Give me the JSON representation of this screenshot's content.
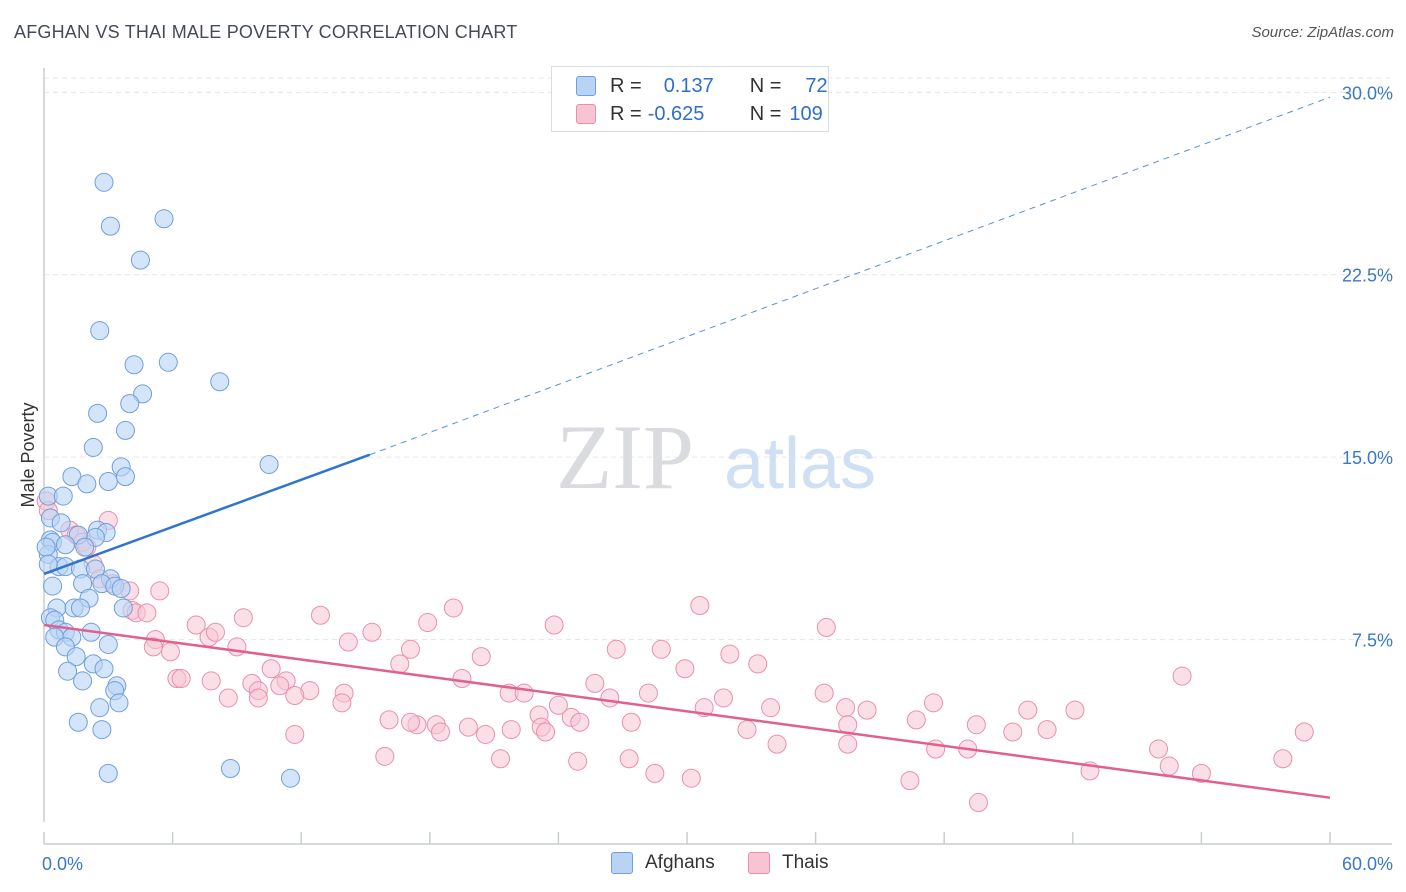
{
  "title": "AFGHAN VS THAI MALE POVERTY CORRELATION CHART",
  "source": "Source: ZipAtlas.com",
  "watermark": {
    "zip": "ZIP",
    "atlas": "atlas"
  },
  "legend": {
    "afghans": {
      "r_label": "R =",
      "r_value": "0.137",
      "n_label": "N =",
      "n_value": "72"
    },
    "thais": {
      "r_label": "R =",
      "r_value": "-0.625",
      "n_label": "N =",
      "n_value": "109"
    }
  },
  "bottom_legend": {
    "afghans": "Afghans",
    "thais": "Thais"
  },
  "colors": {
    "afghans_fill": "#b9d3f5",
    "afghans_stroke": "#6f9fdc",
    "afghans_line": "#2f74d0",
    "thais_fill": "#f8c4d4",
    "thais_stroke": "#e98fae",
    "thais_line": "#e0608e",
    "axis_label": "#3b78c8",
    "grid": "#e3e6ea"
  },
  "chart_data": {
    "type": "scatter",
    "title": "AFGHAN VS THAI MALE POVERTY CORRELATION CHART",
    "xlabel": "",
    "ylabel": "Male Poverty",
    "xlim": [
      0,
      60
    ],
    "ylim": [
      0,
      31
    ],
    "x_tick_labels": [
      "0.0%",
      "60.0%"
    ],
    "y_ticks": [
      7.5,
      15.0,
      22.5,
      30.0
    ],
    "y_tick_labels": [
      "7.5%",
      "15.0%",
      "22.5%",
      "30.0%"
    ],
    "series": [
      {
        "name": "Afghans",
        "trend": {
          "x_start": 0,
          "y_start": 10.2,
          "x_end": 15.2,
          "y_end": 15.1,
          "dashed_x_end": 60,
          "dashed_y_end": 29.8
        },
        "points": [
          [
            2.8,
            26.3
          ],
          [
            3.1,
            24.5
          ],
          [
            5.6,
            24.8
          ],
          [
            4.5,
            23.1
          ],
          [
            2.6,
            20.2
          ],
          [
            4.2,
            18.8
          ],
          [
            5.8,
            18.9
          ],
          [
            8.2,
            18.1
          ],
          [
            4.6,
            17.6
          ],
          [
            4.0,
            17.2
          ],
          [
            2.5,
            16.8
          ],
          [
            3.8,
            16.1
          ],
          [
            2.3,
            15.4
          ],
          [
            3.6,
            14.6
          ],
          [
            10.5,
            14.7
          ],
          [
            1.3,
            14.2
          ],
          [
            2.0,
            13.9
          ],
          [
            3.0,
            14.0
          ],
          [
            3.8,
            14.2
          ],
          [
            0.2,
            13.4
          ],
          [
            0.9,
            13.4
          ],
          [
            0.3,
            12.5
          ],
          [
            0.8,
            12.3
          ],
          [
            2.5,
            12.0
          ],
          [
            2.9,
            11.9
          ],
          [
            2.4,
            11.7
          ],
          [
            1.6,
            11.8
          ],
          [
            0.3,
            11.6
          ],
          [
            0.4,
            11.5
          ],
          [
            1.0,
            11.4
          ],
          [
            1.9,
            11.3
          ],
          [
            0.2,
            11.0
          ],
          [
            0.7,
            10.5
          ],
          [
            1.0,
            10.5
          ],
          [
            1.7,
            10.4
          ],
          [
            2.4,
            10.4
          ],
          [
            3.1,
            10.0
          ],
          [
            1.8,
            9.8
          ],
          [
            2.7,
            9.8
          ],
          [
            0.4,
            9.7
          ],
          [
            3.3,
            9.7
          ],
          [
            3.6,
            9.6
          ],
          [
            2.1,
            9.2
          ],
          [
            0.6,
            8.8
          ],
          [
            1.4,
            8.8
          ],
          [
            1.7,
            8.8
          ],
          [
            3.7,
            8.8
          ],
          [
            0.3,
            8.4
          ],
          [
            0.5,
            8.3
          ],
          [
            0.7,
            7.9
          ],
          [
            1.0,
            7.8
          ],
          [
            2.2,
            7.8
          ],
          [
            0.5,
            7.6
          ],
          [
            1.3,
            7.6
          ],
          [
            3.0,
            7.3
          ],
          [
            1.0,
            7.2
          ],
          [
            1.5,
            6.8
          ],
          [
            2.3,
            6.5
          ],
          [
            2.8,
            6.3
          ],
          [
            1.1,
            6.2
          ],
          [
            1.8,
            5.8
          ],
          [
            3.4,
            5.6
          ],
          [
            3.3,
            5.4
          ],
          [
            3.5,
            4.9
          ],
          [
            2.6,
            4.7
          ],
          [
            1.6,
            4.1
          ],
          [
            2.7,
            3.8
          ],
          [
            3.0,
            2.0
          ],
          [
            8.7,
            2.2
          ],
          [
            11.5,
            1.8
          ],
          [
            0.1,
            11.3
          ],
          [
            0.2,
            10.6
          ]
        ]
      },
      {
        "name": "Thais",
        "trend": {
          "x_start": 0,
          "y_start": 8.1,
          "x_end": 60,
          "y_end": 1.0
        },
        "points": [
          [
            0.1,
            13.2
          ],
          [
            0.2,
            12.8
          ],
          [
            3.0,
            12.4
          ],
          [
            1.2,
            12.0
          ],
          [
            1.5,
            11.8
          ],
          [
            1.8,
            11.5
          ],
          [
            2.0,
            11.3
          ],
          [
            2.3,
            10.6
          ],
          [
            2.6,
            10.0
          ],
          [
            3.2,
            9.8
          ],
          [
            4.0,
            9.5
          ],
          [
            5.4,
            9.5
          ],
          [
            4.1,
            8.7
          ],
          [
            4.3,
            8.6
          ],
          [
            4.8,
            8.6
          ],
          [
            7.1,
            8.1
          ],
          [
            9.3,
            8.4
          ],
          [
            12.9,
            8.5
          ],
          [
            17.9,
            8.2
          ],
          [
            19.1,
            8.8
          ],
          [
            23.8,
            8.1
          ],
          [
            30.6,
            8.9
          ],
          [
            36.5,
            8.0
          ],
          [
            15.3,
            7.8
          ],
          [
            7.7,
            7.6
          ],
          [
            5.2,
            7.5
          ],
          [
            8.0,
            7.8
          ],
          [
            14.2,
            7.4
          ],
          [
            17.1,
            7.1
          ],
          [
            5.1,
            7.2
          ],
          [
            5.9,
            7.0
          ],
          [
            9.0,
            7.2
          ],
          [
            26.7,
            7.1
          ],
          [
            28.8,
            7.1
          ],
          [
            32.0,
            6.9
          ],
          [
            20.4,
            6.8
          ],
          [
            33.3,
            6.5
          ],
          [
            16.6,
            6.5
          ],
          [
            10.6,
            6.3
          ],
          [
            29.9,
            6.3
          ],
          [
            6.2,
            5.9
          ],
          [
            6.4,
            5.9
          ],
          [
            7.8,
            5.8
          ],
          [
            9.7,
            5.7
          ],
          [
            11.3,
            5.8
          ],
          [
            19.5,
            5.9
          ],
          [
            25.7,
            5.7
          ],
          [
            36.4,
            5.3
          ],
          [
            53.1,
            6.0
          ],
          [
            10.0,
            5.4
          ],
          [
            11.0,
            5.6
          ],
          [
            12.4,
            5.4
          ],
          [
            14.0,
            5.3
          ],
          [
            21.7,
            5.3
          ],
          [
            22.4,
            5.3
          ],
          [
            26.4,
            5.1
          ],
          [
            28.2,
            5.3
          ],
          [
            31.7,
            5.1
          ],
          [
            8.6,
            5.1
          ],
          [
            10.0,
            5.1
          ],
          [
            11.7,
            5.2
          ],
          [
            13.9,
            4.9
          ],
          [
            24.0,
            4.8
          ],
          [
            30.8,
            4.7
          ],
          [
            33.9,
            4.7
          ],
          [
            37.4,
            4.7
          ],
          [
            38.4,
            4.6
          ],
          [
            41.5,
            4.9
          ],
          [
            45.9,
            4.6
          ],
          [
            48.1,
            4.6
          ],
          [
            23.1,
            4.4
          ],
          [
            24.6,
            4.3
          ],
          [
            16.1,
            4.2
          ],
          [
            17.4,
            4.0
          ],
          [
            18.3,
            4.0
          ],
          [
            19.8,
            3.9
          ],
          [
            21.8,
            3.8
          ],
          [
            23.2,
            3.9
          ],
          [
            25.0,
            4.1
          ],
          [
            27.4,
            4.1
          ],
          [
            37.5,
            4.0
          ],
          [
            40.7,
            4.2
          ],
          [
            43.5,
            4.0
          ],
          [
            45.2,
            3.7
          ],
          [
            46.8,
            3.8
          ],
          [
            11.7,
            3.6
          ],
          [
            17.1,
            4.1
          ],
          [
            18.5,
            3.7
          ],
          [
            20.6,
            3.6
          ],
          [
            23.4,
            3.7
          ],
          [
            32.8,
            3.8
          ],
          [
            34.2,
            3.2
          ],
          [
            37.5,
            3.2
          ],
          [
            41.6,
            3.0
          ],
          [
            43.1,
            3.0
          ],
          [
            58.8,
            3.7
          ],
          [
            57.8,
            2.6
          ],
          [
            15.9,
            2.7
          ],
          [
            21.3,
            2.6
          ],
          [
            24.9,
            2.5
          ],
          [
            52.0,
            3.0
          ],
          [
            54.0,
            2.0
          ],
          [
            52.5,
            2.3
          ],
          [
            28.5,
            2.0
          ],
          [
            30.2,
            1.8
          ],
          [
            40.4,
            1.7
          ],
          [
            43.6,
            0.8
          ],
          [
            27.3,
            2.6
          ],
          [
            48.8,
            2.1
          ]
        ]
      }
    ]
  }
}
